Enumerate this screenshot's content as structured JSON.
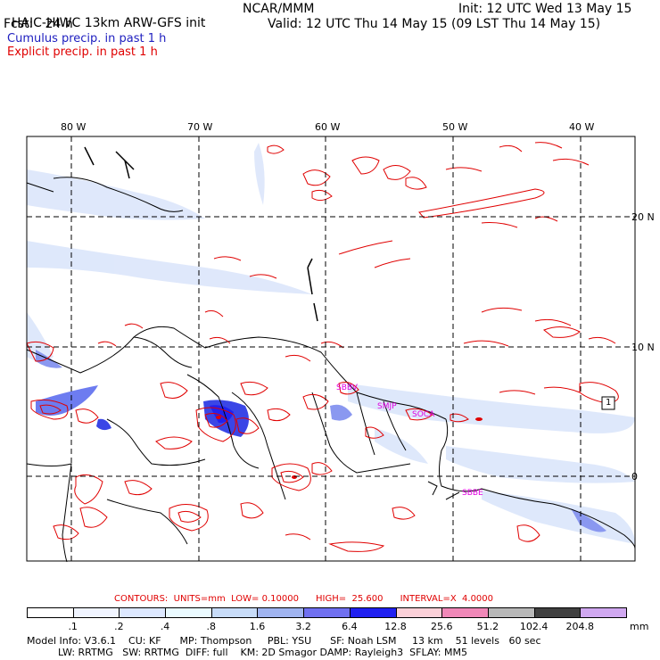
{
  "header": {
    "model_title": "HAIC-HIWC 13km ARW-GFS init",
    "org": "NCAR/MMM",
    "init": "Init: 12 UTC Wed 13 May 15",
    "fcst": "Fcst:   24 h",
    "valid": "Valid: 12 UTC Thu 14 May 15 (09 LST Thu 14 May 15)",
    "legend_cumulus": "Cumulus precip. in past 1 h",
    "legend_explicit": "Explicit precip. in past 1 h",
    "color_cumulus": "#2020c0",
    "color_explicit": "#e00000"
  },
  "map": {
    "lon_labels": [
      "80 W",
      "70 W",
      "60 W",
      "50 W",
      "40 W"
    ],
    "lat_labels": [
      "20 N",
      "10 N",
      "0"
    ],
    "stations": [
      "SBBV",
      "SMJP",
      "SOCA",
      "SBBE"
    ],
    "station_color": "#e000e0",
    "box_marker": "1"
  },
  "contours": {
    "text": "CONTOURS:  UNITS=mm  LOW= 0.10000      HIGH=  25.600      INTERVAL=X  4.0000"
  },
  "colorbar": {
    "values": [
      ".1",
      ".2",
      ".4",
      ".8",
      "1.6",
      "3.2",
      "6.4",
      "12.8",
      "25.6",
      "51.2",
      "102.4",
      "204.8"
    ],
    "unit": "mm",
    "colors": [
      "#ffffff",
      "#f0f4ff",
      "#dde8ff",
      "#eafaff",
      "#c8dcf8",
      "#a0b4f0",
      "#7070f0",
      "#2020f0",
      "#fbd0d8",
      "#f088b8",
      "#b8b8b8",
      "#404040",
      "#d0a8f0"
    ]
  },
  "footer": {
    "line1": "Model Info: V3.6.1    CU: KF      MP: Thompson     PBL: YSU      SF: Noah LSM     13 km    51 levels   60 sec",
    "line2": "          LW: RRTMG   SW: RRTMG  DIFF: full    KM: 2D Smagor DAMP: Rayleigh3  SFLAY: MM5"
  }
}
